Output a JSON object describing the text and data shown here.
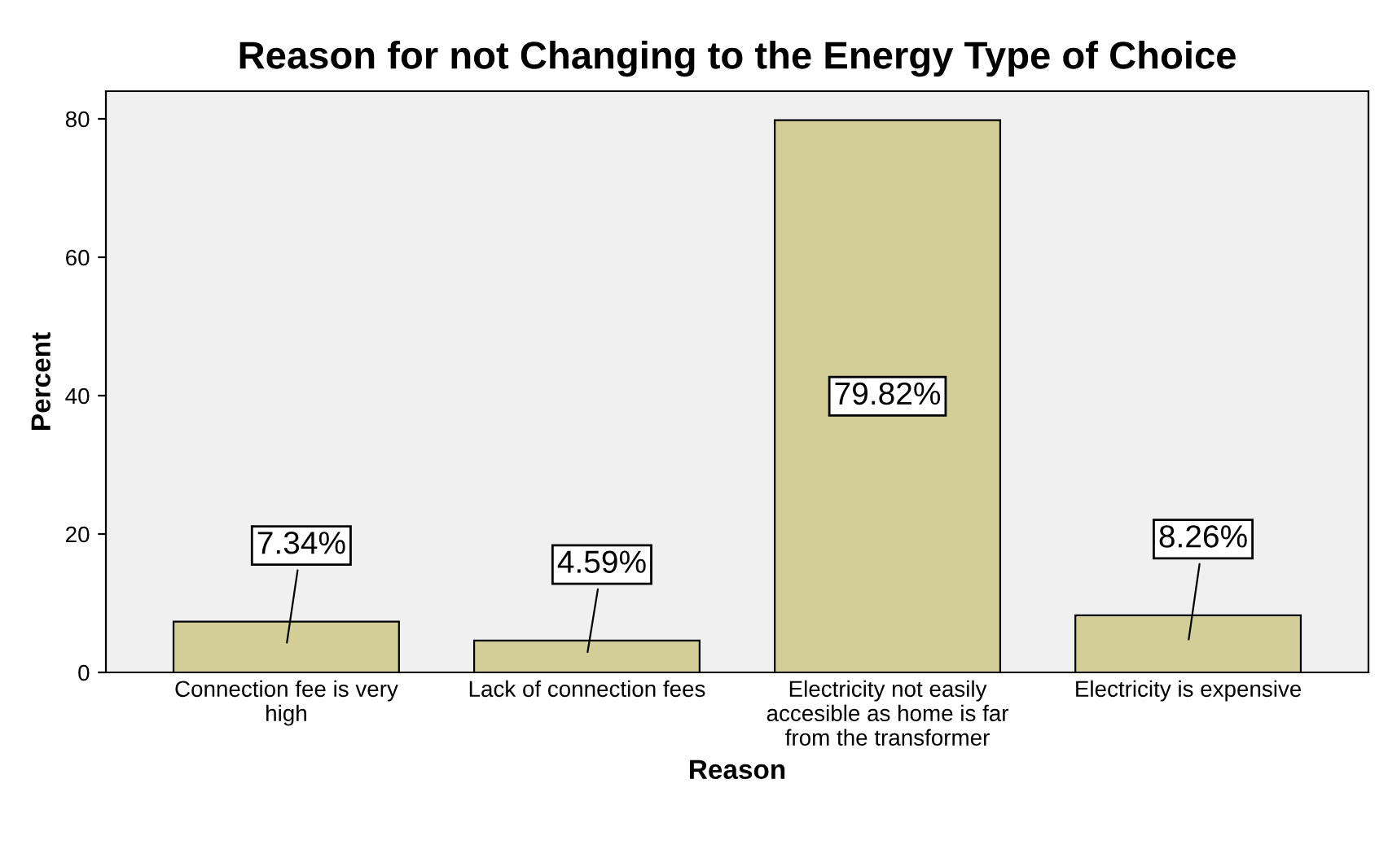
{
  "chart_data": {
    "type": "bar",
    "title": "Reason for not Changing to the Energy Type of Choice",
    "xlabel": "Reason",
    "ylabel": "Percent",
    "categories": [
      "Connection fee is very high",
      "Lack of connection fees",
      "Electricity not easily accesible as home is far from the transformer",
      "Electricity is expensive"
    ],
    "values": [
      7.34,
      4.59,
      79.82,
      8.26
    ],
    "value_labels": [
      "7.34%",
      "4.59%",
      "79.82%",
      "8.26%"
    ],
    "color": "#d3ce97",
    "ylim": [
      0,
      84
    ],
    "yticks": [
      0,
      20,
      40,
      60,
      80
    ],
    "grid": false,
    "legend": false
  }
}
